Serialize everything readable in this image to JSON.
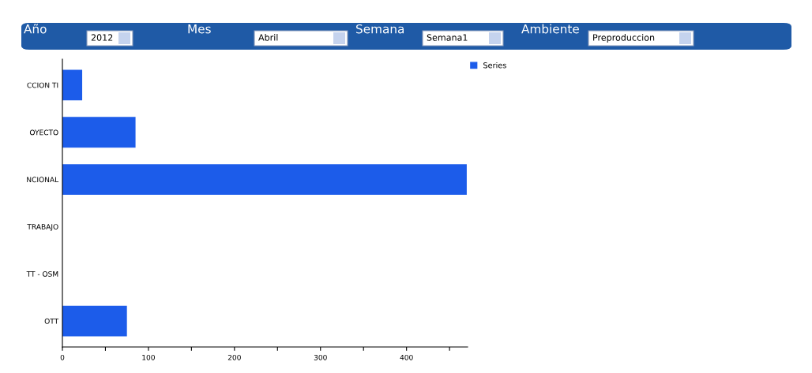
{
  "chart_data": {
    "type": "bar",
    "orientation": "horizontal",
    "categories": [
      "CCION TI",
      "OYECTO",
      "NCIONAL",
      "TRABAJO",
      "TT - OSM",
      "OTT"
    ],
    "series": [
      {
        "name": "Series",
        "color": "#1c5cea",
        "values": [
          23,
          85,
          470,
          0,
          0,
          75
        ]
      }
    ],
    "xlim": [
      0,
      471
    ],
    "xticks": [
      0,
      {
        "value": 50,
        "label": null
      },
      100,
      {
        "value": 150,
        "label": null
      },
      200,
      {
        "value": 250,
        "label": null
      },
      300,
      {
        "value": 350,
        "label": null
      },
      400,
      {
        "value": 450,
        "label": null
      }
    ],
    "legend": "top right",
    "grid": false,
    "annotations": [
      "Año",
      "2012",
      "Mes",
      "Abril",
      "Semana",
      "Semana1",
      "Ambiente",
      "Preproduccion"
    ]
  }
}
